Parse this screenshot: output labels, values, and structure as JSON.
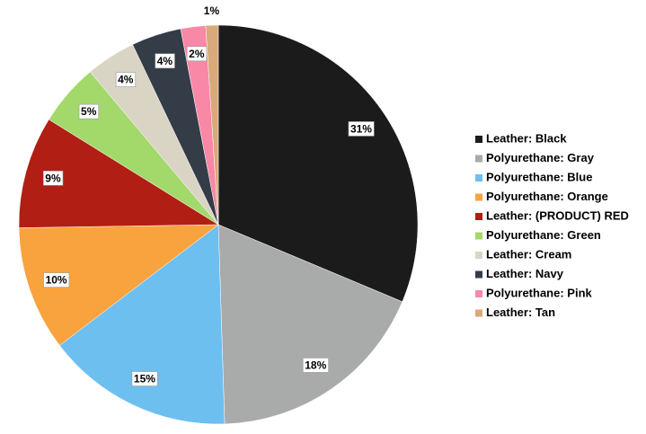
{
  "chart_data": {
    "type": "pie",
    "categories": [
      "Leather: Black",
      "Polyurethane: Gray",
      "Polyurethane: Blue",
      "Polyurethane: Orange",
      "Leather: (PRODUCT) RED",
      "Polyurethane: Green",
      "Leather: Cream",
      "Leather: Navy",
      "Polyurethane: Pink",
      "Leather: Tan"
    ],
    "values": [
      31,
      18,
      15,
      10,
      9,
      5,
      4,
      4,
      2,
      1
    ],
    "value_labels": [
      "31%",
      "18%",
      "15%",
      "10%",
      "9%",
      "5%",
      "4%",
      "4%",
      "2%",
      "1%"
    ],
    "colors": [
      "#1b1b1b",
      "#a9abaa",
      "#6dbff0",
      "#f9a33f",
      "#b11f14",
      "#a3d86b",
      "#d9d4c4",
      "#333c47",
      "#f988a6",
      "#d8a97b"
    ],
    "legend": "right"
  }
}
